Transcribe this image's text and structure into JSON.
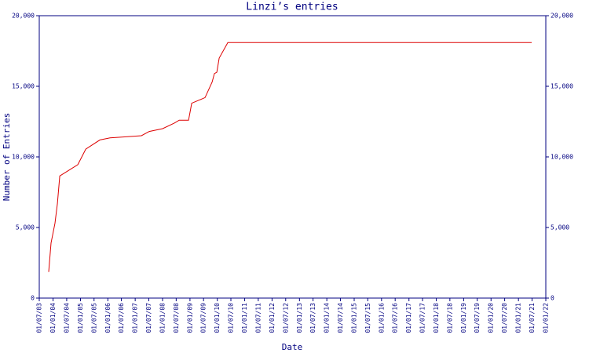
{
  "chart_data": {
    "type": "line",
    "title": "Linzi’s entries",
    "xlabel": "Date",
    "ylabel": "Number of Entries",
    "x": [
      "2003-11-04",
      "2003-12-05",
      "2004-01-27",
      "2004-02-28",
      "2004-03-30",
      "2004-11-27",
      "2005-03-12",
      "2005-09-17",
      "2006-01-30",
      "2006-07-06",
      "2007-03-25",
      "2007-07-07",
      "2008-01-02",
      "2008-06-08",
      "2008-08-10",
      "2008-12-13",
      "2009-01-24",
      "2009-07-21",
      "2009-10-23",
      "2009-11-23",
      "2009-12-25",
      "2010-01-26",
      "2010-05-21",
      "2021-06-26"
    ],
    "values": [
      1850,
      3900,
      5300,
      6700,
      8650,
      9450,
      10550,
      11200,
      11350,
      11400,
      11500,
      11800,
      12000,
      12400,
      12600,
      12600,
      13800,
      14200,
      15300,
      15900,
      16000,
      17000,
      18100,
      18100
    ],
    "color": "#dd0000",
    "axis_color": "#000080",
    "xlim": [
      "2003-07-01",
      "2022-01-01"
    ],
    "xticks": [
      {
        "value": "2003-07-01",
        "label": "01/07/03"
      },
      {
        "value": "2004-01-01",
        "label": "01/01/04"
      },
      {
        "value": "2004-07-01",
        "label": "01/07/04"
      },
      {
        "value": "2005-01-01",
        "label": "01/01/05"
      },
      {
        "value": "2005-07-01",
        "label": "01/07/05"
      },
      {
        "value": "2006-01-01",
        "label": "01/01/06"
      },
      {
        "value": "2006-07-01",
        "label": "01/07/06"
      },
      {
        "value": "2007-01-01",
        "label": "01/01/07"
      },
      {
        "value": "2007-07-01",
        "label": "01/07/07"
      },
      {
        "value": "2008-01-01",
        "label": "01/01/08"
      },
      {
        "value": "2008-07-01",
        "label": "01/07/08"
      },
      {
        "value": "2009-01-01",
        "label": "01/01/09"
      },
      {
        "value": "2009-07-01",
        "label": "01/07/09"
      },
      {
        "value": "2010-01-01",
        "label": "01/01/10"
      },
      {
        "value": "2010-07-01",
        "label": "01/07/10"
      },
      {
        "value": "2011-01-01",
        "label": "01/01/11"
      },
      {
        "value": "2011-07-01",
        "label": "01/07/11"
      },
      {
        "value": "2012-01-01",
        "label": "01/01/12"
      },
      {
        "value": "2012-07-01",
        "label": "01/07/12"
      },
      {
        "value": "2013-01-01",
        "label": "01/01/13"
      },
      {
        "value": "2013-07-01",
        "label": "01/07/13"
      },
      {
        "value": "2014-01-01",
        "label": "01/01/14"
      },
      {
        "value": "2014-07-01",
        "label": "01/07/14"
      },
      {
        "value": "2015-01-01",
        "label": "01/01/15"
      },
      {
        "value": "2015-07-01",
        "label": "01/07/15"
      },
      {
        "value": "2016-01-01",
        "label": "01/01/16"
      },
      {
        "value": "2016-07-01",
        "label": "01/07/16"
      },
      {
        "value": "2017-01-01",
        "label": "01/01/17"
      },
      {
        "value": "2017-07-01",
        "label": "01/07/17"
      },
      {
        "value": "2018-01-01",
        "label": "01/01/18"
      },
      {
        "value": "2018-07-01",
        "label": "01/07/18"
      },
      {
        "value": "2019-01-01",
        "label": "01/01/19"
      },
      {
        "value": "2019-07-01",
        "label": "01/07/19"
      },
      {
        "value": "2020-01-01",
        "label": "01/01/20"
      },
      {
        "value": "2020-07-01",
        "label": "01/07/20"
      },
      {
        "value": "2021-01-01",
        "label": "01/01/21"
      },
      {
        "value": "2021-07-01",
        "label": "01/07/21"
      },
      {
        "value": "2022-01-01",
        "label": "01/01/22"
      }
    ],
    "ylim": [
      0,
      20000
    ],
    "yticks": [
      0,
      {
        "value": 5000,
        "label": "5,000"
      },
      {
        "value": 10000,
        "label": "10,000"
      },
      {
        "value": 15000,
        "label": "15,000"
      },
      {
        "value": 20000,
        "label": "20,000"
      }
    ],
    "right_axis": true
  }
}
